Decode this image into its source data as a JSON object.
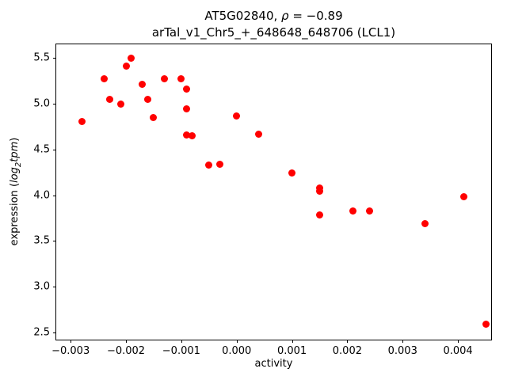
{
  "figure": {
    "title_line1": {
      "prefix": "AT5G02840, ",
      "rho": "ρ",
      "suffix": " = −0.89"
    },
    "title_line2": "arTal_v1_Chr5_+_648648_648706 (LCL1)",
    "xlabel": "activity",
    "ylabel": {
      "pre": "expression (",
      "log": "log",
      "sub": "2",
      "var": "tpm",
      "post": ")"
    }
  },
  "chart_data": {
    "type": "scatter",
    "title": "AT5G02840, ρ = −0.89",
    "subtitle": "arTal_v1_Chr5_+_648648_648706 (LCL1)",
    "xlabel": "activity",
    "ylabel": "expression (log2 tpm)",
    "legend": "none",
    "grid": false,
    "marker_color": "#ff0000",
    "xlim": [
      -0.00326,
      0.0046
    ],
    "ylim": [
      2.42,
      5.65
    ],
    "xticks": [
      {
        "v": -0.003,
        "label": "−0.003"
      },
      {
        "v": -0.002,
        "label": "−0.002"
      },
      {
        "v": -0.001,
        "label": "−0.001"
      },
      {
        "v": 0.0,
        "label": "0.000"
      },
      {
        "v": 0.001,
        "label": "0.001"
      },
      {
        "v": 0.002,
        "label": "0.002"
      },
      {
        "v": 0.003,
        "label": "0.003"
      },
      {
        "v": 0.004,
        "label": "0.004"
      }
    ],
    "yticks": [
      {
        "v": 2.5,
        "label": "2.5"
      },
      {
        "v": 3.0,
        "label": "3.0"
      },
      {
        "v": 3.5,
        "label": "3.5"
      },
      {
        "v": 4.0,
        "label": "4.0"
      },
      {
        "v": 4.5,
        "label": "4.5"
      },
      {
        "v": 5.0,
        "label": "5.0"
      },
      {
        "v": 5.5,
        "label": "5.5"
      }
    ],
    "points": [
      [
        -0.0028,
        4.81
      ],
      [
        -0.0024,
        5.27
      ],
      [
        -0.0023,
        5.05
      ],
      [
        -0.0021,
        5.0
      ],
      [
        -0.002,
        5.41
      ],
      [
        -0.0019,
        5.5
      ],
      [
        -0.0017,
        5.21
      ],
      [
        -0.0016,
        5.05
      ],
      [
        -0.0015,
        4.85
      ],
      [
        -0.0013,
        5.27
      ],
      [
        -0.001,
        5.27
      ],
      [
        -0.0009,
        5.16
      ],
      [
        -0.0009,
        4.94
      ],
      [
        -0.0009,
        4.66
      ],
      [
        -0.0008,
        4.65
      ],
      [
        -0.0005,
        4.33
      ],
      [
        -0.0003,
        4.34
      ],
      [
        0.0,
        4.87
      ],
      [
        0.0004,
        4.67
      ],
      [
        0.001,
        4.24
      ],
      [
        0.0015,
        4.08
      ],
      [
        0.0015,
        4.04
      ],
      [
        0.0015,
        3.78
      ],
      [
        0.0021,
        3.83
      ],
      [
        0.0024,
        3.83
      ],
      [
        0.0034,
        3.69
      ],
      [
        0.0041,
        3.98
      ],
      [
        0.0045,
        2.59
      ]
    ]
  }
}
